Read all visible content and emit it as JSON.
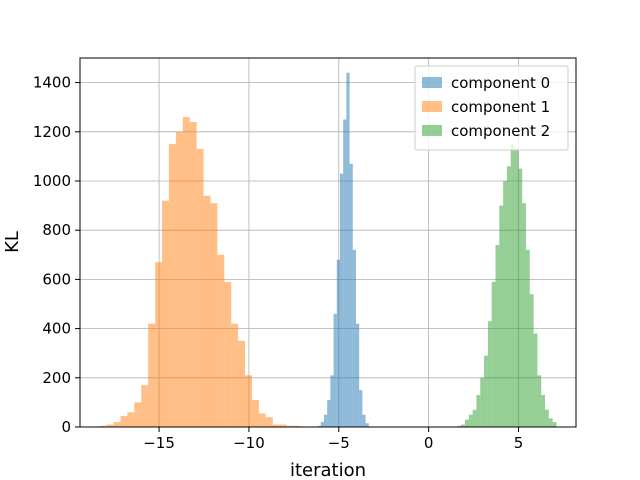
{
  "chart_data": {
    "type": "bar",
    "subtype": "histogram",
    "xlabel": "iteration",
    "ylabel": "KL",
    "xlim": [
      -19.4,
      8.2
    ],
    "ylim": [
      0,
      1500
    ],
    "xticks": [
      -15,
      -10,
      -5,
      0,
      5
    ],
    "yticks": [
      0,
      200,
      400,
      600,
      800,
      1000,
      1200,
      1400
    ],
    "grid": true,
    "legend_position": "top-right",
    "series": [
      {
        "name": "component 0",
        "color": "#1f77b4",
        "opacity": 0.5,
        "bin_start": -6.18,
        "bin_width": 0.178,
        "counts": [
          5,
          20,
          50,
          110,
          210,
          460,
          680,
          1030,
          1250,
          1440,
          1070,
          720,
          420,
          150,
          50,
          15
        ]
      },
      {
        "name": "component 1",
        "color": "#ff7f0e",
        "opacity": 0.5,
        "bin_start": -18.3,
        "bin_width": 0.385,
        "counts": [
          5,
          10,
          20,
          45,
          60,
          100,
          170,
          420,
          670,
          920,
          1150,
          1200,
          1260,
          1240,
          1130,
          940,
          910,
          700,
          590,
          420,
          350,
          210,
          110,
          55,
          40,
          10,
          10,
          5,
          5
        ]
      },
      {
        "name": "component 2",
        "color": "#2ca02c",
        "opacity": 0.5,
        "bin_start": 1.6,
        "bin_width": 0.212,
        "counts": [
          5,
          10,
          30,
          50,
          70,
          130,
          200,
          290,
          430,
          590,
          740,
          900,
          1000,
          1060,
          1150,
          1130,
          1050,
          910,
          720,
          540,
          380,
          210,
          130,
          70,
          35,
          20
        ]
      }
    ]
  }
}
